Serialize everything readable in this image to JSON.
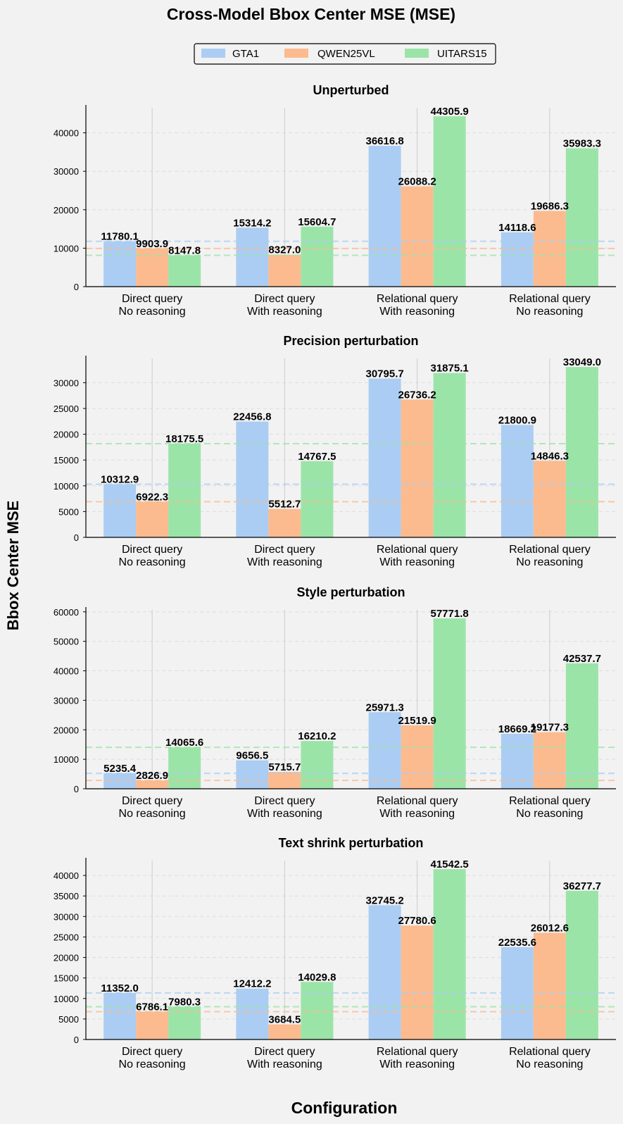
{
  "figure": {
    "title": "Cross-Model Bbox Center MSE (MSE)",
    "ylabel": "Bbox Center MSE",
    "xlabel": "Configuration"
  },
  "colors": {
    "background": "#f2f2f2",
    "series": [
      "#abcdf3",
      "#fbbb8f",
      "#9be4a8"
    ],
    "guide": "#cccccc",
    "grid": "#dddddd",
    "axis": "#000000"
  },
  "legend": {
    "placement": "top-center",
    "items": [
      "GTA1",
      "QWEN25VL",
      "UITARS15"
    ]
  },
  "chart_data": [
    {
      "type": "bar",
      "title": "Unperturbed",
      "xlabel": "",
      "ylabel": "",
      "categories": [
        [
          "Direct query",
          "No reasoning"
        ],
        [
          "Direct query",
          "With reasoning"
        ],
        [
          "Relational query",
          "With reasoning"
        ],
        [
          "Relational query",
          "No reasoning"
        ]
      ],
      "series": [
        {
          "name": "GTA1",
          "values": [
            11780.1,
            15314.2,
            36616.8,
            14118.6
          ],
          "labels": [
            "11780.1",
            "15314.2",
            "36616.8",
            "14118.6"
          ]
        },
        {
          "name": "QWEN25VL",
          "values": [
            9903.9,
            8327.0,
            26088.2,
            19686.3
          ],
          "labels": [
            "9903.9",
            "8327.0",
            "26088.2",
            "19686.3"
          ]
        },
        {
          "name": "UITARS15",
          "values": [
            8147.8,
            15604.7,
            44305.9,
            35983.3
          ],
          "labels": [
            "8147.8",
            "15604.7",
            "44305.9",
            "35983.3"
          ]
        }
      ],
      "baselines": [
        11780.1,
        9903.9,
        8147.8
      ],
      "ylim": [
        0,
        46521
      ],
      "yticks": [
        0,
        10000,
        20000,
        30000,
        40000
      ],
      "ytick_labels": [
        "0",
        "10000",
        "20000",
        "30000",
        "40000"
      ],
      "grid": true
    },
    {
      "type": "bar",
      "title": "Precision perturbation",
      "xlabel": "",
      "ylabel": "",
      "categories": [
        [
          "Direct query",
          "No reasoning"
        ],
        [
          "Direct query",
          "With reasoning"
        ],
        [
          "Relational query",
          "With reasoning"
        ],
        [
          "Relational query",
          "No reasoning"
        ]
      ],
      "series": [
        {
          "name": "GTA1",
          "values": [
            10312.9,
            22456.8,
            30795.7,
            21800.9
          ],
          "labels": [
            "10312.9",
            "22456.8",
            "30795.7",
            "21800.9"
          ]
        },
        {
          "name": "QWEN25VL",
          "values": [
            6922.3,
            5512.7,
            26736.2,
            14846.3
          ],
          "labels": [
            "6922.3",
            "5512.7",
            "26736.2",
            "14846.3"
          ]
        },
        {
          "name": "UITARS15",
          "values": [
            18175.5,
            14767.5,
            31875.1,
            33049.0
          ],
          "labels": [
            "18175.5",
            "14767.5",
            "31875.1",
            "33049.0"
          ]
        }
      ],
      "baselines": [
        10312.9,
        6922.3,
        18175.5
      ],
      "ylim": [
        0,
        34701
      ],
      "yticks": [
        0,
        5000,
        10000,
        15000,
        20000,
        25000,
        30000
      ],
      "ytick_labels": [
        "0",
        "5000",
        "10000",
        "15000",
        "20000",
        "25000",
        "30000"
      ],
      "grid": true
    },
    {
      "type": "bar",
      "title": "Style perturbation",
      "xlabel": "",
      "ylabel": "",
      "categories": [
        [
          "Direct query",
          "No reasoning"
        ],
        [
          "Direct query",
          "With reasoning"
        ],
        [
          "Relational query",
          "With reasoning"
        ],
        [
          "Relational query",
          "No reasoning"
        ]
      ],
      "series": [
        {
          "name": "GTA1",
          "values": [
            5235.4,
            9656.5,
            25971.3,
            18669.2
          ],
          "labels": [
            "5235.4",
            "9656.5",
            "25971.3",
            "18669.2"
          ]
        },
        {
          "name": "QWEN25VL",
          "values": [
            2826.9,
            5715.7,
            21519.9,
            19177.3
          ],
          "labels": [
            "2826.9",
            "5715.7",
            "21519.9",
            "19177.3"
          ]
        },
        {
          "name": "UITARS15",
          "values": [
            14065.6,
            16210.2,
            57771.8,
            42537.7
          ],
          "labels": [
            "14065.6",
            "16210.2",
            "57771.8",
            "42537.7"
          ]
        }
      ],
      "baselines": [
        5235.4,
        2826.9,
        14065.6
      ],
      "ylim": [
        0,
        60660
      ],
      "yticks": [
        0,
        10000,
        20000,
        30000,
        40000,
        50000,
        60000
      ],
      "ytick_labels": [
        "0",
        "10000",
        "20000",
        "30000",
        "40000",
        "50000",
        "60000"
      ],
      "grid": true
    },
    {
      "type": "bar",
      "title": "Text shrink perturbation",
      "xlabel": "",
      "ylabel": "",
      "categories": [
        [
          "Direct query",
          "No reasoning"
        ],
        [
          "Direct query",
          "With reasoning"
        ],
        [
          "Relational query",
          "With reasoning"
        ],
        [
          "Relational query",
          "No reasoning"
        ]
      ],
      "series": [
        {
          "name": "GTA1",
          "values": [
            11352.0,
            12412.2,
            32745.2,
            22535.6
          ],
          "labels": [
            "11352.0",
            "12412.2",
            "32745.2",
            "22535.6"
          ]
        },
        {
          "name": "QWEN25VL",
          "values": [
            6786.1,
            3684.5,
            27780.6,
            26012.6
          ],
          "labels": [
            "6786.1",
            "3684.5",
            "27780.6",
            "26012.6"
          ]
        },
        {
          "name": "UITARS15",
          "values": [
            7980.3,
            14029.8,
            41542.5,
            36277.7
          ],
          "labels": [
            "7980.3",
            "14029.8",
            "41542.5",
            "36277.7"
          ]
        }
      ],
      "baselines": [
        11352.0,
        6786.1,
        7980.3
      ],
      "ylim": [
        0,
        43620
      ],
      "yticks": [
        0,
        5000,
        10000,
        15000,
        20000,
        25000,
        30000,
        35000,
        40000
      ],
      "ytick_labels": [
        "0",
        "5000",
        "10000",
        "15000",
        "20000",
        "25000",
        "30000",
        "35000",
        "40000"
      ],
      "grid": true
    }
  ]
}
